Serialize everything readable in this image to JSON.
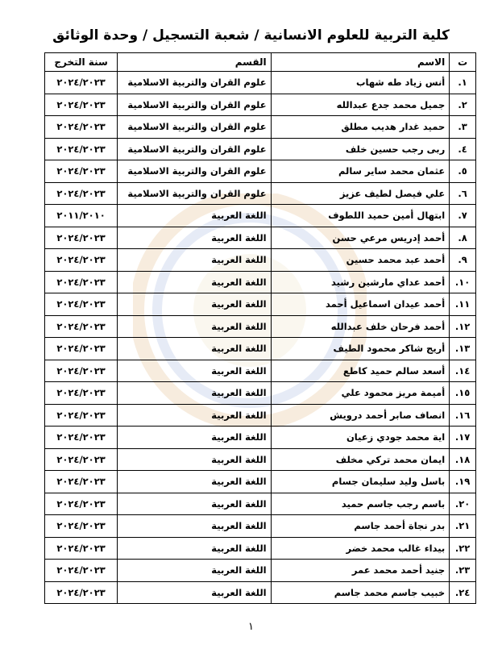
{
  "header": {
    "title": "كلية التربية للعلوم الانسانية / شعبة التسجيل / وحدة الوثائق"
  },
  "table": {
    "columns": [
      "ت",
      "الاسم",
      "القسم",
      "سنة التخرج"
    ],
    "rows": [
      [
        "١.",
        "أنس زياد طه شهاب",
        "علوم القران والتربية الاسلامية",
        "٢٠٢٤/٢٠٢٣"
      ],
      [
        "٢.",
        "جميل محمد جدع عبدالله",
        "علوم القران والتربية الاسلامية",
        "٢٠٢٤/٢٠٢٣"
      ],
      [
        "٣.",
        "حميد غدار هديب مطلق",
        "علوم القران والتربية الاسلامية",
        "٢٠٢٤/٢٠٢٣"
      ],
      [
        "٤.",
        "ربى رجب حسين خلف",
        "علوم القران والتربية الاسلامية",
        "٢٠٢٤/٢٠٢٣"
      ],
      [
        "٥.",
        "عثمان محمد ساير سالم",
        "علوم القران والتربية الاسلامية",
        "٢٠٢٤/٢٠٢٣"
      ],
      [
        "٦.",
        "علي فيصل لطيف عزيز",
        "علوم القران والتربية الاسلامية",
        "٢٠٢٤/٢٠٢٣"
      ],
      [
        "٧.",
        "ابتهال أمين حميد اللطوف",
        "اللغة العربية",
        "٢٠١١/٢٠١٠"
      ],
      [
        "٨.",
        "أحمد إدريس مرعي حسن",
        "اللغة العربية",
        "٢٠٢٤/٢٠٢٣"
      ],
      [
        "٩.",
        "أحمد عبد محمد حسين",
        "اللغة العربية",
        "٢٠٢٤/٢٠٢٣"
      ],
      [
        "١٠.",
        "أحمد عداي مارشين رشيد",
        "اللغة العربية",
        "٢٠٢٤/٢٠٢٣"
      ],
      [
        "١١.",
        "أحمد عيدان اسماعيل أحمد",
        "اللغة العربية",
        "٢٠٢٤/٢٠٢٣"
      ],
      [
        "١٢.",
        "أحمد فرحان خلف عبدالله",
        "اللغة العربية",
        "٢٠٢٤/٢٠٢٣"
      ],
      [
        "١٣.",
        "أريج شاكر محمود الطيف",
        "اللغة العربية",
        "٢٠٢٤/٢٠٢٣"
      ],
      [
        "١٤.",
        "أسعد سالم حميد كاطع",
        "اللغة العربية",
        "٢٠٢٤/٢٠٢٣"
      ],
      [
        "١٥.",
        "أميمة مريز محمود علي",
        "اللغة العربية",
        "٢٠٢٤/٢٠٢٣"
      ],
      [
        "١٦.",
        "انصاف صابر أحمد درويش",
        "اللغة العربية",
        "٢٠٢٤/٢٠٢٣"
      ],
      [
        "١٧.",
        "اية محمد جودي زعيان",
        "اللغة العربية",
        "٢٠٢٤/٢٠٢٣"
      ],
      [
        "١٨.",
        "ايمان محمد تركي مخلف",
        "اللغة العربية",
        "٢٠٢٤/٢٠٢٣"
      ],
      [
        "١٩.",
        "باسل وليد سليمان جسام",
        "اللغة العربية",
        "٢٠٢٤/٢٠٢٣"
      ],
      [
        "٢٠.",
        "باسم رجب جاسم حميد",
        "اللغة العربية",
        "٢٠٢٤/٢٠٢٣"
      ],
      [
        "٢١.",
        "بدر نجاة أحمد جاسم",
        "اللغة العربية",
        "٢٠٢٤/٢٠٢٣"
      ],
      [
        "٢٢.",
        "بيداء غالب محمد خضر",
        "اللغة العربية",
        "٢٠٢٤/٢٠٢٣"
      ],
      [
        "٢٣.",
        "جنيد أحمد محمد عمر",
        "اللغة العربية",
        "٢٠٢٤/٢٠٢٣"
      ],
      [
        "٢٤.",
        "خبيب جاسم محمد جاسم",
        "اللغة العربية",
        "٢٠٢٤/٢٠٢٣"
      ]
    ]
  },
  "footer": {
    "page_number": "١"
  }
}
